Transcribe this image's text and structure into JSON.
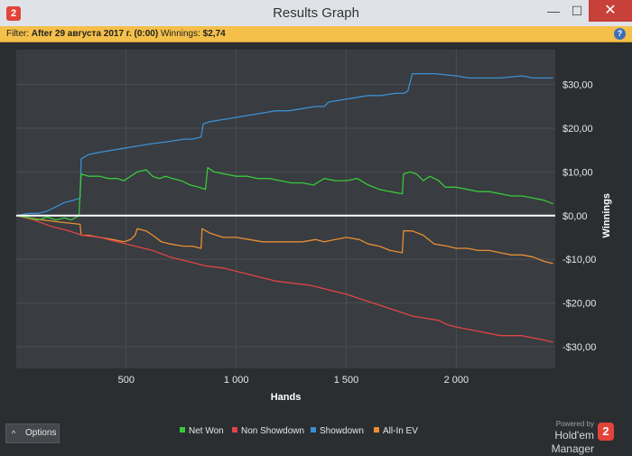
{
  "window": {
    "title": "Results Graph",
    "app_icon_glyph": "2",
    "minimize_glyph": "—",
    "maximize_glyph": "☐",
    "close_glyph": "✕"
  },
  "filter": {
    "label": "Filter:",
    "range_text": "After 29 августа 2017 г. (0:00)",
    "winnings_label": "Winnings:",
    "winnings_value": "$2,74",
    "help_glyph": "?"
  },
  "footer": {
    "options_label": "Options",
    "options_chevron": "^",
    "powered_by": "Powered by",
    "brand": "Hold'em Manager",
    "brand_logo_glyph": "2"
  },
  "chart_data": {
    "type": "line",
    "xlabel": "Hands",
    "ylabel": "Winnings",
    "xlim": [
      0,
      2450
    ],
    "ylim": [
      -35,
      38
    ],
    "x_ticks": [
      500,
      1000,
      1500,
      2000
    ],
    "x_tick_labels": [
      "500",
      "1 000",
      "1 500",
      "2 000"
    ],
    "y_ticks": [
      30,
      20,
      10,
      0,
      -10,
      -20,
      -30
    ],
    "y_tick_labels": [
      "$30,00",
      "$20,00",
      "$10,00",
      "$0,00",
      "-$10,00",
      "-$20,00",
      "-$30,00"
    ],
    "grid": true,
    "legend_position": "bottom",
    "series": [
      {
        "name": "Net Won",
        "color": "#38c93b",
        "points": [
          [
            0,
            0
          ],
          [
            60,
            -0.5
          ],
          [
            100,
            -1
          ],
          [
            140,
            -0.3
          ],
          [
            180,
            -1
          ],
          [
            220,
            -0.5
          ],
          [
            250,
            -1
          ],
          [
            285,
            0
          ],
          [
            295,
            9.5
          ],
          [
            330,
            9
          ],
          [
            380,
            9
          ],
          [
            420,
            8.5
          ],
          [
            460,
            8.5
          ],
          [
            490,
            8
          ],
          [
            520,
            9
          ],
          [
            550,
            10
          ],
          [
            590,
            10.5
          ],
          [
            620,
            9
          ],
          [
            650,
            8.5
          ],
          [
            680,
            9
          ],
          [
            710,
            8.5
          ],
          [
            750,
            8
          ],
          [
            790,
            7
          ],
          [
            830,
            6.5
          ],
          [
            860,
            6
          ],
          [
            870,
            11
          ],
          [
            900,
            10
          ],
          [
            950,
            9.5
          ],
          [
            1000,
            9
          ],
          [
            1050,
            9
          ],
          [
            1100,
            8.5
          ],
          [
            1150,
            8.5
          ],
          [
            1200,
            8
          ],
          [
            1250,
            7.5
          ],
          [
            1300,
            7.5
          ],
          [
            1350,
            7
          ],
          [
            1400,
            8.5
          ],
          [
            1450,
            8
          ],
          [
            1500,
            8
          ],
          [
            1550,
            8.5
          ],
          [
            1600,
            7
          ],
          [
            1650,
            6
          ],
          [
            1700,
            5.5
          ],
          [
            1755,
            5
          ],
          [
            1760,
            9.5
          ],
          [
            1790,
            10
          ],
          [
            1820,
            9.5
          ],
          [
            1850,
            8
          ],
          [
            1880,
            9
          ],
          [
            1920,
            8
          ],
          [
            1950,
            6.5
          ],
          [
            2000,
            6.5
          ],
          [
            2050,
            6
          ],
          [
            2100,
            5.5
          ],
          [
            2150,
            5.5
          ],
          [
            2200,
            5
          ],
          [
            2250,
            4.5
          ],
          [
            2300,
            4.5
          ],
          [
            2350,
            4
          ],
          [
            2400,
            3.5
          ],
          [
            2440,
            2.7
          ]
        ]
      },
      {
        "name": "Non Showdown",
        "color": "#e04545",
        "points": [
          [
            0,
            0
          ],
          [
            80,
            -1
          ],
          [
            160,
            -2.5
          ],
          [
            240,
            -3.5
          ],
          [
            300,
            -4.5
          ],
          [
            380,
            -5
          ],
          [
            460,
            -6
          ],
          [
            540,
            -7
          ],
          [
            620,
            -8
          ],
          [
            700,
            -9.5
          ],
          [
            780,
            -10.5
          ],
          [
            860,
            -11.5
          ],
          [
            940,
            -12
          ],
          [
            1020,
            -13
          ],
          [
            1100,
            -14
          ],
          [
            1180,
            -15
          ],
          [
            1260,
            -15.5
          ],
          [
            1340,
            -16
          ],
          [
            1420,
            -17
          ],
          [
            1500,
            -18
          ],
          [
            1560,
            -19
          ],
          [
            1620,
            -20
          ],
          [
            1680,
            -21
          ],
          [
            1740,
            -22
          ],
          [
            1800,
            -23
          ],
          [
            1860,
            -23.5
          ],
          [
            1920,
            -24
          ],
          [
            1960,
            -25
          ],
          [
            2000,
            -25.5
          ],
          [
            2050,
            -26
          ],
          [
            2100,
            -26.5
          ],
          [
            2150,
            -27
          ],
          [
            2200,
            -27.5
          ],
          [
            2250,
            -27.5
          ],
          [
            2300,
            -27.5
          ],
          [
            2350,
            -28
          ],
          [
            2400,
            -28.5
          ],
          [
            2440,
            -29
          ]
        ]
      },
      {
        "name": "Showdown",
        "color": "#3b8fd1",
        "points": [
          [
            0,
            0
          ],
          [
            60,
            0.5
          ],
          [
            100,
            0.5
          ],
          [
            140,
            1
          ],
          [
            180,
            2
          ],
          [
            220,
            3
          ],
          [
            260,
            3.5
          ],
          [
            290,
            4
          ],
          [
            295,
            13
          ],
          [
            330,
            14
          ],
          [
            380,
            14.5
          ],
          [
            440,
            15
          ],
          [
            500,
            15.5
          ],
          [
            560,
            16
          ],
          [
            620,
            16.5
          ],
          [
            700,
            17
          ],
          [
            760,
            17.5
          ],
          [
            800,
            17.5
          ],
          [
            840,
            18
          ],
          [
            850,
            21
          ],
          [
            880,
            21.5
          ],
          [
            940,
            22
          ],
          [
            1000,
            22.5
          ],
          [
            1060,
            23
          ],
          [
            1120,
            23.5
          ],
          [
            1180,
            24
          ],
          [
            1240,
            24
          ],
          [
            1300,
            24.5
          ],
          [
            1360,
            25
          ],
          [
            1400,
            25
          ],
          [
            1420,
            26
          ],
          [
            1480,
            26.5
          ],
          [
            1540,
            27
          ],
          [
            1600,
            27.5
          ],
          [
            1660,
            27.5
          ],
          [
            1720,
            28
          ],
          [
            1760,
            28
          ],
          [
            1780,
            28.5
          ],
          [
            1800,
            32.5
          ],
          [
            1900,
            32.5
          ],
          [
            2000,
            32
          ],
          [
            2060,
            31.5
          ],
          [
            2100,
            31.5
          ],
          [
            2200,
            31.5
          ],
          [
            2300,
            32
          ],
          [
            2350,
            31.5
          ],
          [
            2440,
            31.5
          ]
        ]
      },
      {
        "name": "All-In EV",
        "color": "#e88e35",
        "points": [
          [
            0,
            0
          ],
          [
            60,
            -0.5
          ],
          [
            120,
            -1
          ],
          [
            200,
            -1.5
          ],
          [
            290,
            -2
          ],
          [
            295,
            -4.5
          ],
          [
            330,
            -4.5
          ],
          [
            380,
            -5
          ],
          [
            440,
            -5.5
          ],
          [
            490,
            -6
          ],
          [
            520,
            -5.5
          ],
          [
            540,
            -4.5
          ],
          [
            550,
            -3
          ],
          [
            590,
            -3.5
          ],
          [
            620,
            -4.5
          ],
          [
            660,
            -6
          ],
          [
            700,
            -6.5
          ],
          [
            760,
            -7
          ],
          [
            800,
            -7
          ],
          [
            840,
            -7.5
          ],
          [
            845,
            -3
          ],
          [
            880,
            -4
          ],
          [
            940,
            -5
          ],
          [
            1000,
            -5
          ],
          [
            1060,
            -5.5
          ],
          [
            1120,
            -6
          ],
          [
            1180,
            -6
          ],
          [
            1240,
            -6
          ],
          [
            1300,
            -6
          ],
          [
            1360,
            -5.5
          ],
          [
            1400,
            -6
          ],
          [
            1450,
            -5.5
          ],
          [
            1500,
            -5
          ],
          [
            1560,
            -5.5
          ],
          [
            1600,
            -6.5
          ],
          [
            1650,
            -7
          ],
          [
            1700,
            -8
          ],
          [
            1755,
            -8.5
          ],
          [
            1760,
            -3.5
          ],
          [
            1800,
            -3.5
          ],
          [
            1850,
            -4.5
          ],
          [
            1900,
            -6.5
          ],
          [
            1960,
            -7
          ],
          [
            2000,
            -7.5
          ],
          [
            2050,
            -7.5
          ],
          [
            2100,
            -8
          ],
          [
            2150,
            -8
          ],
          [
            2200,
            -8.5
          ],
          [
            2250,
            -9
          ],
          [
            2300,
            -9
          ],
          [
            2350,
            -9.5
          ],
          [
            2400,
            -10.5
          ],
          [
            2440,
            -11
          ]
        ]
      }
    ]
  }
}
